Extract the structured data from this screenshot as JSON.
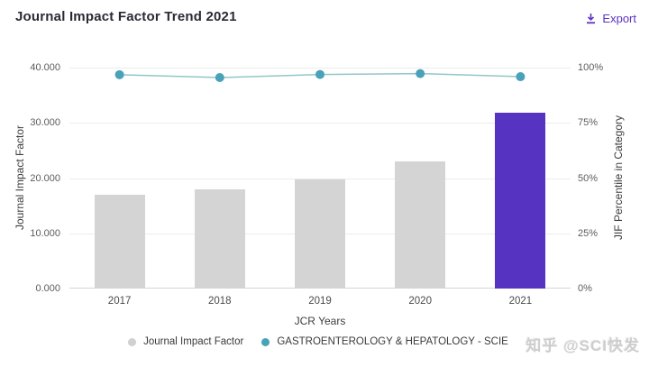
{
  "header": {
    "title": "Journal Impact Factor Trend 2021",
    "export_label": "Export"
  },
  "chart_data": {
    "type": "bar",
    "categories": [
      "2017",
      "2018",
      "2019",
      "2020",
      "2021"
    ],
    "series": [
      {
        "name": "Journal Impact Factor",
        "type": "bar",
        "axis": "left",
        "values": [
          17.016,
          17.943,
          19.819,
          23.059,
          31.793
        ],
        "highlight_index": 4
      },
      {
        "name": "GASTROENTEROLOGY & HEPATOLOGY - SCIE",
        "type": "line",
        "axis": "right",
        "values": [
          96.8,
          95.5,
          96.9,
          97.3,
          95.9
        ]
      }
    ],
    "left_axis": {
      "label": "Journal Impact Factor",
      "ticks": [
        "40.000",
        "30.000",
        "20.000",
        "10.000",
        "0.000"
      ],
      "min": 0,
      "max": 40
    },
    "right_axis": {
      "label": "JIF Percentile in Category",
      "ticks": [
        "100%",
        "75%",
        "50%",
        "25%",
        "0%"
      ],
      "min": 0,
      "max": 100
    },
    "x_axis": {
      "label": "JCR Years"
    },
    "legend": [
      {
        "label": "Journal Impact Factor",
        "color": "#d0d0d0"
      },
      {
        "label": "GASTROENTEROLOGY & HEPATOLOGY - SCIE",
        "color": "#4aa2b8"
      }
    ],
    "grid": true,
    "legend_position": "bottom",
    "colors": {
      "bar": "#d4d4d4",
      "bar_highlight": "#5733c2",
      "line": "#93c6c8",
      "dot": "#49a2b7",
      "accent": "#5e33bf"
    }
  },
  "watermark": "知乎 @SCI快发"
}
